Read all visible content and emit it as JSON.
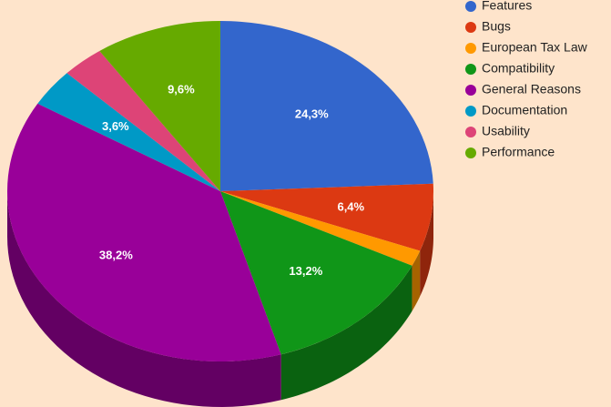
{
  "chart_data": {
    "type": "pie3d",
    "categories": [
      "Features",
      "Bugs",
      "European Tax Law",
      "Compatibility",
      "General Reasons",
      "Documentation",
      "Usability",
      "Performance"
    ],
    "values": [
      24.3,
      6.4,
      1.5,
      13.2,
      38.2,
      3.6,
      3.2,
      9.6
    ],
    "value_labels": [
      "24,3%",
      "6,4%",
      null,
      "13,2%",
      "38,2%",
      "3,6%",
      null,
      "9,6%"
    ],
    "colors": [
      "#3366cc",
      "#dc3912",
      "#ff9900",
      "#109618",
      "#990099",
      "#0099c6",
      "#dd4477",
      "#66aa00"
    ]
  }
}
